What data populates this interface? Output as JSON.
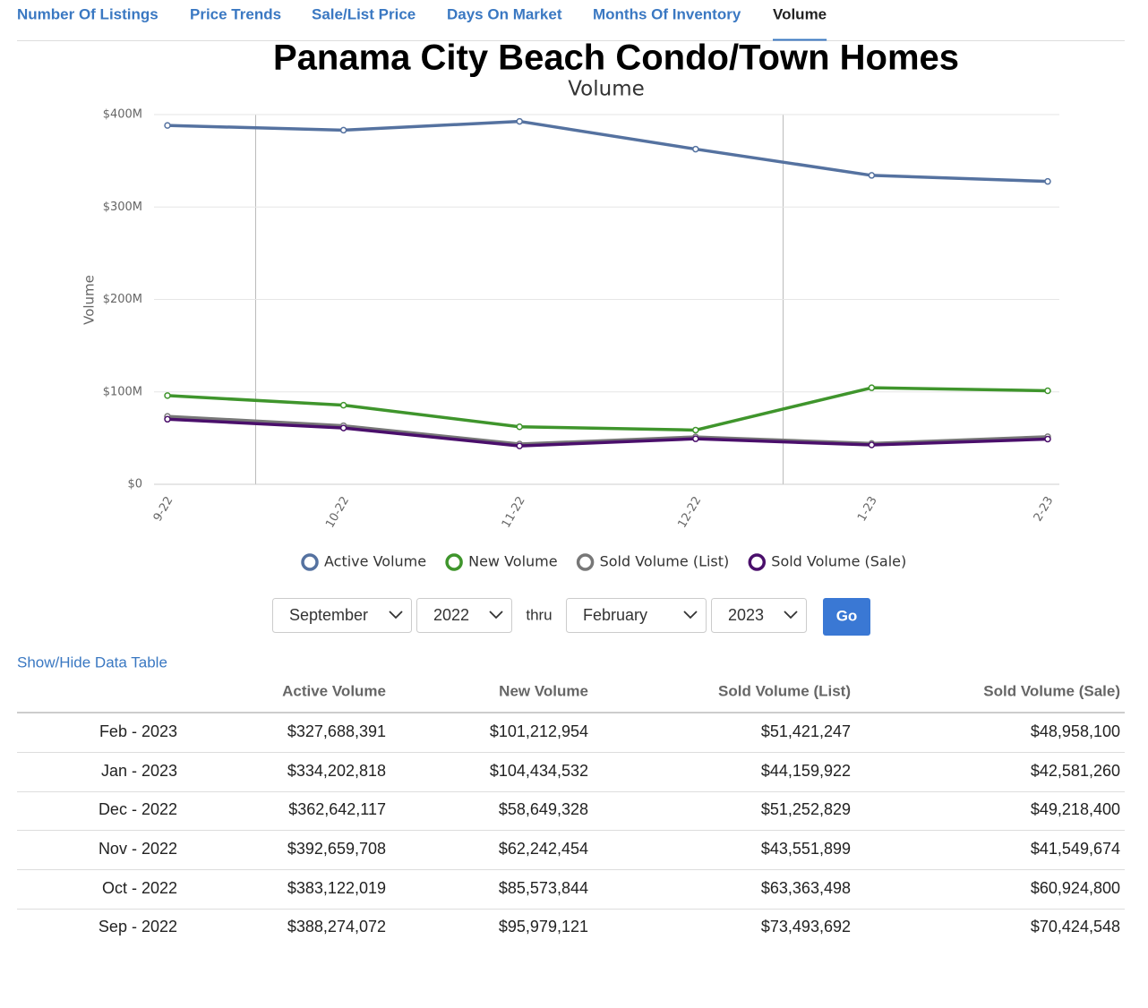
{
  "tabs": [
    {
      "label": "Number Of Listings",
      "active": false
    },
    {
      "label": "Price Trends",
      "active": false
    },
    {
      "label": "Sale/List Price",
      "active": false
    },
    {
      "label": "Days On Market",
      "active": false
    },
    {
      "label": "Months Of Inventory",
      "active": false
    },
    {
      "label": "Volume",
      "active": true
    }
  ],
  "chart_data": {
    "type": "line",
    "title": "Panama City Beach Condo/Town Homes",
    "subtitle": "Volume",
    "y_label": "Volume",
    "categories": [
      "9-22",
      "10-22",
      "11-22",
      "12-22",
      "1-23",
      "2-23"
    ],
    "series": [
      {
        "name": "Active Volume",
        "color": "#5572a0",
        "values": [
          388274072,
          383122019,
          392659708,
          362642117,
          334202818,
          327688391
        ]
      },
      {
        "name": "New Volume",
        "color": "#3f952c",
        "values": [
          95979121,
          85573844,
          62242454,
          58649328,
          104434532,
          101212954
        ]
      },
      {
        "name": "Sold Volume (List)",
        "color": "#777777",
        "values": [
          73493692,
          63363498,
          43551899,
          51252829,
          44159922,
          51421247
        ]
      },
      {
        "name": "Sold Volume (Sale)",
        "color": "#4a0f6b",
        "values": [
          70424548,
          60924800,
          41549674,
          49218400,
          42581260,
          48958100
        ]
      }
    ],
    "ylim": [
      0,
      400000000
    ],
    "yticks": [
      {
        "value": 0,
        "label": "$0"
      },
      {
        "value": 100000000,
        "label": "$100M"
      },
      {
        "value": 200000000,
        "label": "$200M"
      },
      {
        "value": 300000000,
        "label": "$300M"
      },
      {
        "value": 400000000,
        "label": "$400M"
      }
    ],
    "grid": true,
    "legend": "bottom"
  },
  "filters": {
    "from_month": "September",
    "from_year": "2022",
    "separator": "thru",
    "to_month": "February",
    "to_year": "2023",
    "button": "Go"
  },
  "table": {
    "toggle": "Show/Hide Data Table",
    "headers": [
      "Active Volume",
      "New Volume",
      "Sold Volume (List)",
      "Sold Volume (Sale)"
    ],
    "rows": [
      [
        "Feb - 2023",
        "$327,688,391",
        "$101,212,954",
        "$51,421,247",
        "$48,958,100"
      ],
      [
        "Jan - 2023",
        "$334,202,818",
        "$104,434,532",
        "$44,159,922",
        "$42,581,260"
      ],
      [
        "Dec - 2022",
        "$362,642,117",
        "$58,649,328",
        "$51,252,829",
        "$49,218,400"
      ],
      [
        "Nov - 2022",
        "$392,659,708",
        "$62,242,454",
        "$43,551,899",
        "$41,549,674"
      ],
      [
        "Oct - 2022",
        "$383,122,019",
        "$85,573,844",
        "$63,363,498",
        "$60,924,800"
      ],
      [
        "Sep - 2022",
        "$388,274,072",
        "$95,979,121",
        "$73,493,692",
        "$70,424,548"
      ]
    ]
  }
}
